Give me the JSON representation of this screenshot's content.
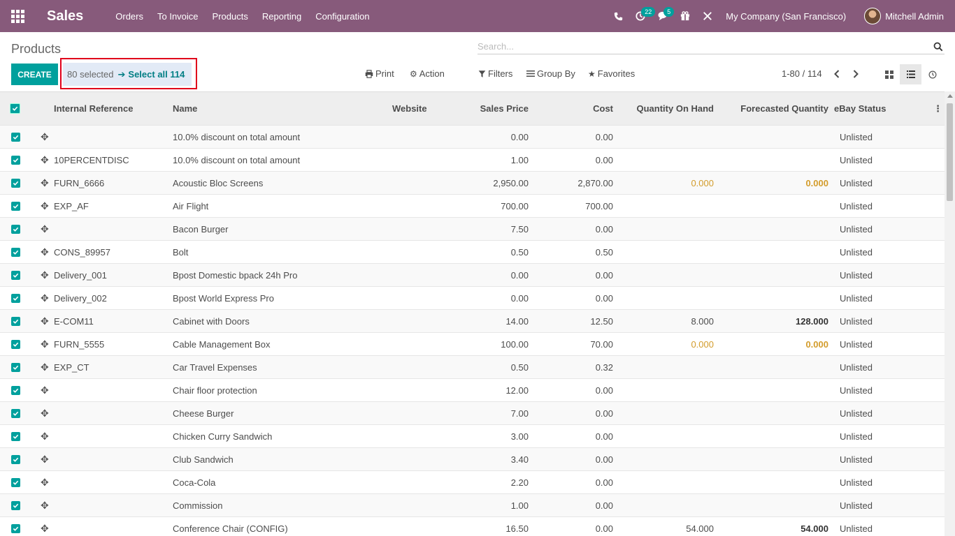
{
  "navbar": {
    "app_title": "Sales",
    "menu": [
      "Orders",
      "To Invoice",
      "Products",
      "Reporting",
      "Configuration"
    ],
    "activity_badge": "22",
    "messages_badge": "5",
    "company": "My Company (San Francisco)",
    "user": "Mitchell Admin"
  },
  "control": {
    "breadcrumb": "Products",
    "search_placeholder": "Search...",
    "create_label": "CREATE",
    "selected_text": "80 selected",
    "select_all_label": "Select all 114",
    "print_label": "Print",
    "action_label": "Action",
    "filters_label": "Filters",
    "groupby_label": "Group By",
    "favorites_label": "Favorites",
    "pager": "1-80 / 114"
  },
  "table": {
    "columns": [
      "Internal Reference",
      "Name",
      "Website",
      "Sales Price",
      "Cost",
      "Quantity On Hand",
      "Forecasted Quantity",
      "eBay Status"
    ],
    "rows": [
      {
        "ref": "",
        "name": "10.0% discount on total amount",
        "price": "0.00",
        "cost": "0.00",
        "onhand": "",
        "forecast": "",
        "ebay": "Unlisted"
      },
      {
        "ref": "10PERCENTDISC",
        "name": "10.0% discount on total amount",
        "price": "1.00",
        "cost": "0.00",
        "onhand": "",
        "forecast": "",
        "ebay": "Unlisted"
      },
      {
        "ref": "FURN_6666",
        "name": "Acoustic Bloc Screens",
        "price": "2,950.00",
        "cost": "2,870.00",
        "onhand": "0.000",
        "forecast": "0.000",
        "ebay": "Unlisted",
        "warn": true
      },
      {
        "ref": "EXP_AF",
        "name": "Air Flight",
        "price": "700.00",
        "cost": "700.00",
        "onhand": "",
        "forecast": "",
        "ebay": "Unlisted"
      },
      {
        "ref": "",
        "name": "Bacon Burger",
        "price": "7.50",
        "cost": "0.00",
        "onhand": "",
        "forecast": "",
        "ebay": "Unlisted"
      },
      {
        "ref": "CONS_89957",
        "name": "Bolt",
        "price": "0.50",
        "cost": "0.50",
        "onhand": "",
        "forecast": "",
        "ebay": "Unlisted"
      },
      {
        "ref": "Delivery_001",
        "name": "Bpost Domestic bpack 24h Pro",
        "price": "0.00",
        "cost": "0.00",
        "onhand": "",
        "forecast": "",
        "ebay": "Unlisted"
      },
      {
        "ref": "Delivery_002",
        "name": "Bpost World Express Pro",
        "price": "0.00",
        "cost": "0.00",
        "onhand": "",
        "forecast": "",
        "ebay": "Unlisted"
      },
      {
        "ref": "E-COM11",
        "name": "Cabinet with Doors",
        "price": "14.00",
        "cost": "12.50",
        "onhand": "8.000",
        "forecast": "128.000",
        "ebay": "Unlisted"
      },
      {
        "ref": "FURN_5555",
        "name": "Cable Management Box",
        "price": "100.00",
        "cost": "70.00",
        "onhand": "0.000",
        "forecast": "0.000",
        "ebay": "Unlisted",
        "warn": true
      },
      {
        "ref": "EXP_CT",
        "name": "Car Travel Expenses",
        "price": "0.50",
        "cost": "0.32",
        "onhand": "",
        "forecast": "",
        "ebay": "Unlisted"
      },
      {
        "ref": "",
        "name": "Chair floor protection",
        "price": "12.00",
        "cost": "0.00",
        "onhand": "",
        "forecast": "",
        "ebay": "Unlisted"
      },
      {
        "ref": "",
        "name": "Cheese Burger",
        "price": "7.00",
        "cost": "0.00",
        "onhand": "",
        "forecast": "",
        "ebay": "Unlisted"
      },
      {
        "ref": "",
        "name": "Chicken Curry Sandwich",
        "price": "3.00",
        "cost": "0.00",
        "onhand": "",
        "forecast": "",
        "ebay": "Unlisted"
      },
      {
        "ref": "",
        "name": "Club Sandwich",
        "price": "3.40",
        "cost": "0.00",
        "onhand": "",
        "forecast": "",
        "ebay": "Unlisted"
      },
      {
        "ref": "",
        "name": "Coca-Cola",
        "price": "2.20",
        "cost": "0.00",
        "onhand": "",
        "forecast": "",
        "ebay": "Unlisted"
      },
      {
        "ref": "",
        "name": "Commission",
        "price": "1.00",
        "cost": "0.00",
        "onhand": "",
        "forecast": "",
        "ebay": "Unlisted"
      },
      {
        "ref": "",
        "name": "Conference Chair (CONFIG)",
        "price": "16.50",
        "cost": "0.00",
        "onhand": "54.000",
        "forecast": "54.000",
        "ebay": "Unlisted"
      }
    ]
  },
  "colors": {
    "navbar": "#875a7b",
    "primary": "#00a09d",
    "warning": "#d39c2b",
    "highlight_border": "#e0001b"
  },
  "icons": [
    "apps-icon",
    "phone-icon",
    "clock-icon",
    "chat-icon",
    "gift-icon",
    "tools-icon",
    "search-icon",
    "print-icon",
    "gear-icon",
    "filter-icon",
    "list-icon",
    "star-icon",
    "chevron-left-icon",
    "chevron-right-icon",
    "kanban-icon",
    "list-view-icon",
    "activity-view-icon",
    "drag-handle-icon",
    "checkbox-icon",
    "column-options-icon"
  ]
}
